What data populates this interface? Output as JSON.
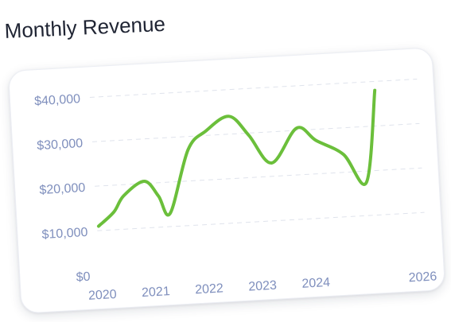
{
  "page": {
    "title": "Monthly Revenue"
  },
  "chart_data": {
    "type": "line",
    "title": "Monthly Revenue",
    "xlabel": "",
    "ylabel": "",
    "xlim": [
      2019.97,
      2026.1
    ],
    "ylim": [
      0,
      40000
    ],
    "x_ticks": [
      2020,
      2021,
      2022,
      2023,
      2024,
      2026
    ],
    "x_tick_labels": [
      "2020",
      "2021",
      "2022",
      "2023",
      "2024",
      "2026"
    ],
    "y_ticks": [
      0,
      10000,
      20000,
      30000,
      40000
    ],
    "y_tick_labels": [
      "$0",
      "$10,000",
      "$20,000",
      "$30,000",
      "$40,000"
    ],
    "grid": "horizontal dashed",
    "legend": "none",
    "color": "#6bbf3b",
    "series": [
      {
        "x": [
          2020.0,
          2020.3,
          2020.5,
          2020.9,
          2021.15,
          2021.35,
          2021.75,
          2022.1,
          2022.55,
          2022.9,
          2023.3,
          2023.8,
          2024.15,
          2024.65,
          2025.05
        ],
        "y": [
          11000,
          14000,
          17500,
          20500,
          17000,
          13000,
          27000,
          31000,
          34000,
          29500,
          23000,
          30500,
          27500,
          24000,
          17500
        ],
        "end": [
          2025.3,
          38000
        ]
      }
    ]
  }
}
